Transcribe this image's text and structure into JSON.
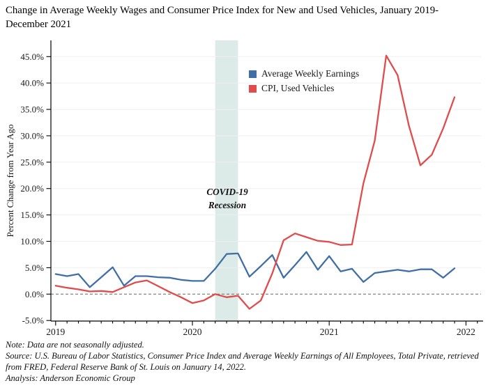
{
  "title": "Change in Average Weekly Wages and Consumer Price Index for New and Used Vehicles, January 2019-December 2021",
  "chart_data": {
    "type": "line",
    "x_start": "2019-01",
    "x_end": "2021-12",
    "x_unit": "month",
    "x_year_ticks": [
      {
        "month_index": 0,
        "label": "2019"
      },
      {
        "month_index": 12,
        "label": "2020"
      },
      {
        "month_index": 24,
        "label": "2021"
      },
      {
        "month_index": 36,
        "label": "2022"
      }
    ],
    "ylabel": "Percent Change from Year Ago",
    "ylim": [
      -5,
      48
    ],
    "ytick_min": -5,
    "ytick_max": 45,
    "ytick_step": 5,
    "ytick_format": "one-decimal-percent",
    "grid": true,
    "zero_line_dashed": true,
    "legend_position": "top-center-inside",
    "recession_band": {
      "start_month_index": 14,
      "end_month_index": 16,
      "color": "#dcebe7",
      "label_line1": "COVID-19",
      "label_line2": "Recession"
    },
    "series": [
      {
        "name": "Average Weekly Earnings",
        "color": "#3f6fa6",
        "values": [
          3.8,
          3.4,
          3.8,
          1.3,
          3.2,
          5.1,
          1.6,
          3.4,
          3.4,
          3.2,
          3.1,
          2.7,
          2.5,
          2.5,
          4.8,
          7.6,
          7.7,
          3.3,
          5.3,
          7.4,
          3.1,
          5.5,
          8.0,
          4.6,
          7.2,
          4.3,
          4.8,
          2.3,
          4.0,
          4.3,
          4.6,
          4.3,
          4.7,
          4.7,
          3.1,
          4.9
        ]
      },
      {
        "name": "CPI, Used Vehicles",
        "color": "#e04b4b",
        "values": [
          1.6,
          1.2,
          0.9,
          0.5,
          0.6,
          0.4,
          1.3,
          2.2,
          2.6,
          1.5,
          0.4,
          -0.6,
          -1.7,
          -1.2,
          0.0,
          -0.6,
          -0.3,
          -2.8,
          -1.2,
          3.9,
          10.2,
          11.5,
          10.8,
          10.1,
          9.9,
          9.3,
          9.4,
          21.0,
          29.1,
          45.2,
          41.5,
          31.9,
          24.4,
          26.4,
          31.4,
          37.3
        ]
      }
    ]
  },
  "notes": {
    "note": "Note: Data are not seasonally adjusted.",
    "source": "Source: U.S. Bureau of Labor Statistics, Consumer Price Index and Average Weekly Earnings of All Employees, Total Private, retrieved from FRED, Federal Reserve Bank of St. Louis on January 14, 2022.",
    "analysis": "Analysis: Anderson Economic Group"
  }
}
